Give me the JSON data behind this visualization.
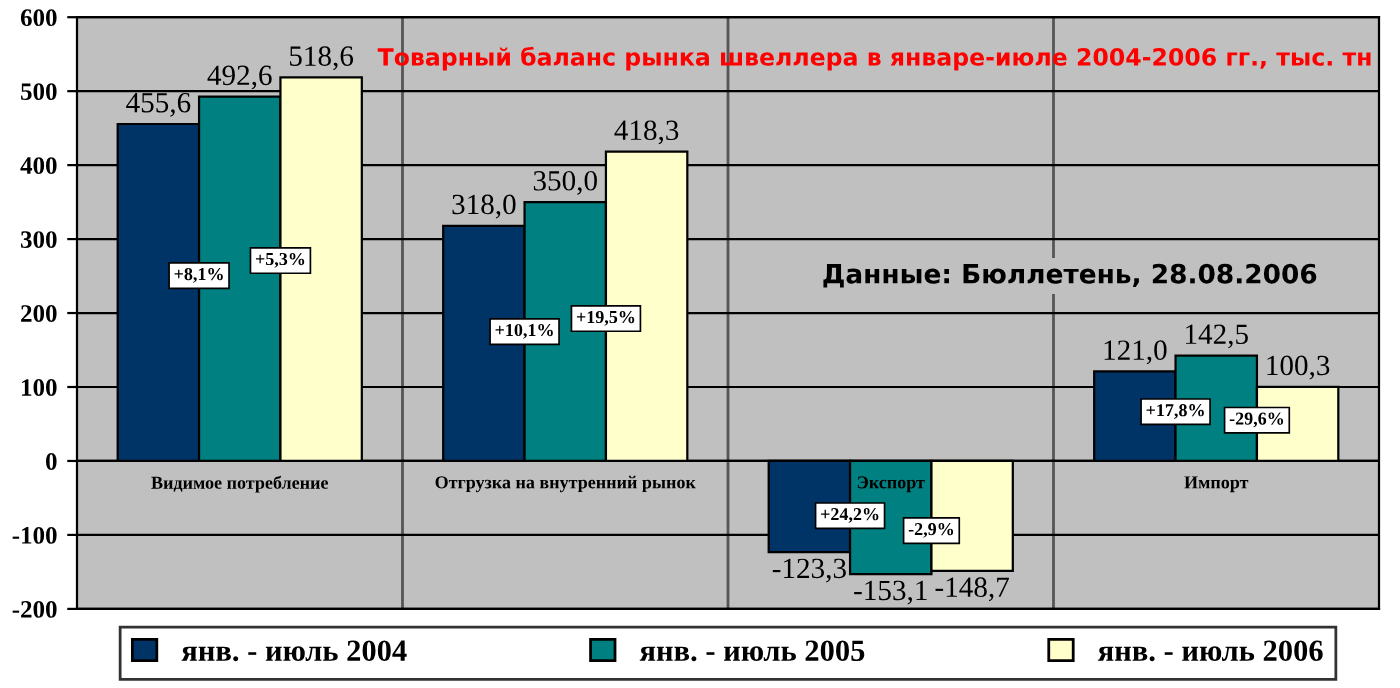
{
  "chart_data": {
    "type": "bar",
    "title": "Товарный баланс рынка швеллера в январе-июле 2004-2006 гг., тыс. тн",
    "categories": [
      "Видимое потребление",
      "Отгрузка на внутренний рынок",
      "Экспорт",
      "Импорт"
    ],
    "series": [
      {
        "name": "янв. - июль 2004",
        "color": "#003366",
        "values": [
          455.6,
          318.0,
          -123.3,
          121.0
        ],
        "value_labels": [
          "455,6",
          "318,0",
          "-123,3",
          "121,0"
        ]
      },
      {
        "name": "янв. - июль 2005",
        "color": "#008080",
        "values": [
          492.6,
          350.0,
          -153.1,
          142.5
        ],
        "value_labels": [
          "492,6",
          "350,0",
          "-153,1",
          "142,5"
        ]
      },
      {
        "name": "янв. - июль 2006",
        "color": "#ffffcc",
        "values": [
          518.6,
          418.3,
          -148.7,
          100.3
        ],
        "value_labels": [
          "518,6",
          "418,3",
          "-148,7",
          "100,3"
        ]
      }
    ],
    "ylim": [
      -200,
      600
    ],
    "yticks": [
      -200,
      -100,
      0,
      100,
      200,
      300,
      400,
      500,
      600
    ],
    "grid": true,
    "legend": "bottom",
    "annotations": [
      "+8,1%",
      "+5,3%",
      "+10,1%",
      "+19,5%",
      "+24,2%",
      "-2,9%",
      "+17,8%",
      "-29,6%",
      "Данные: Бюллетень, 28.08.2006"
    ]
  }
}
